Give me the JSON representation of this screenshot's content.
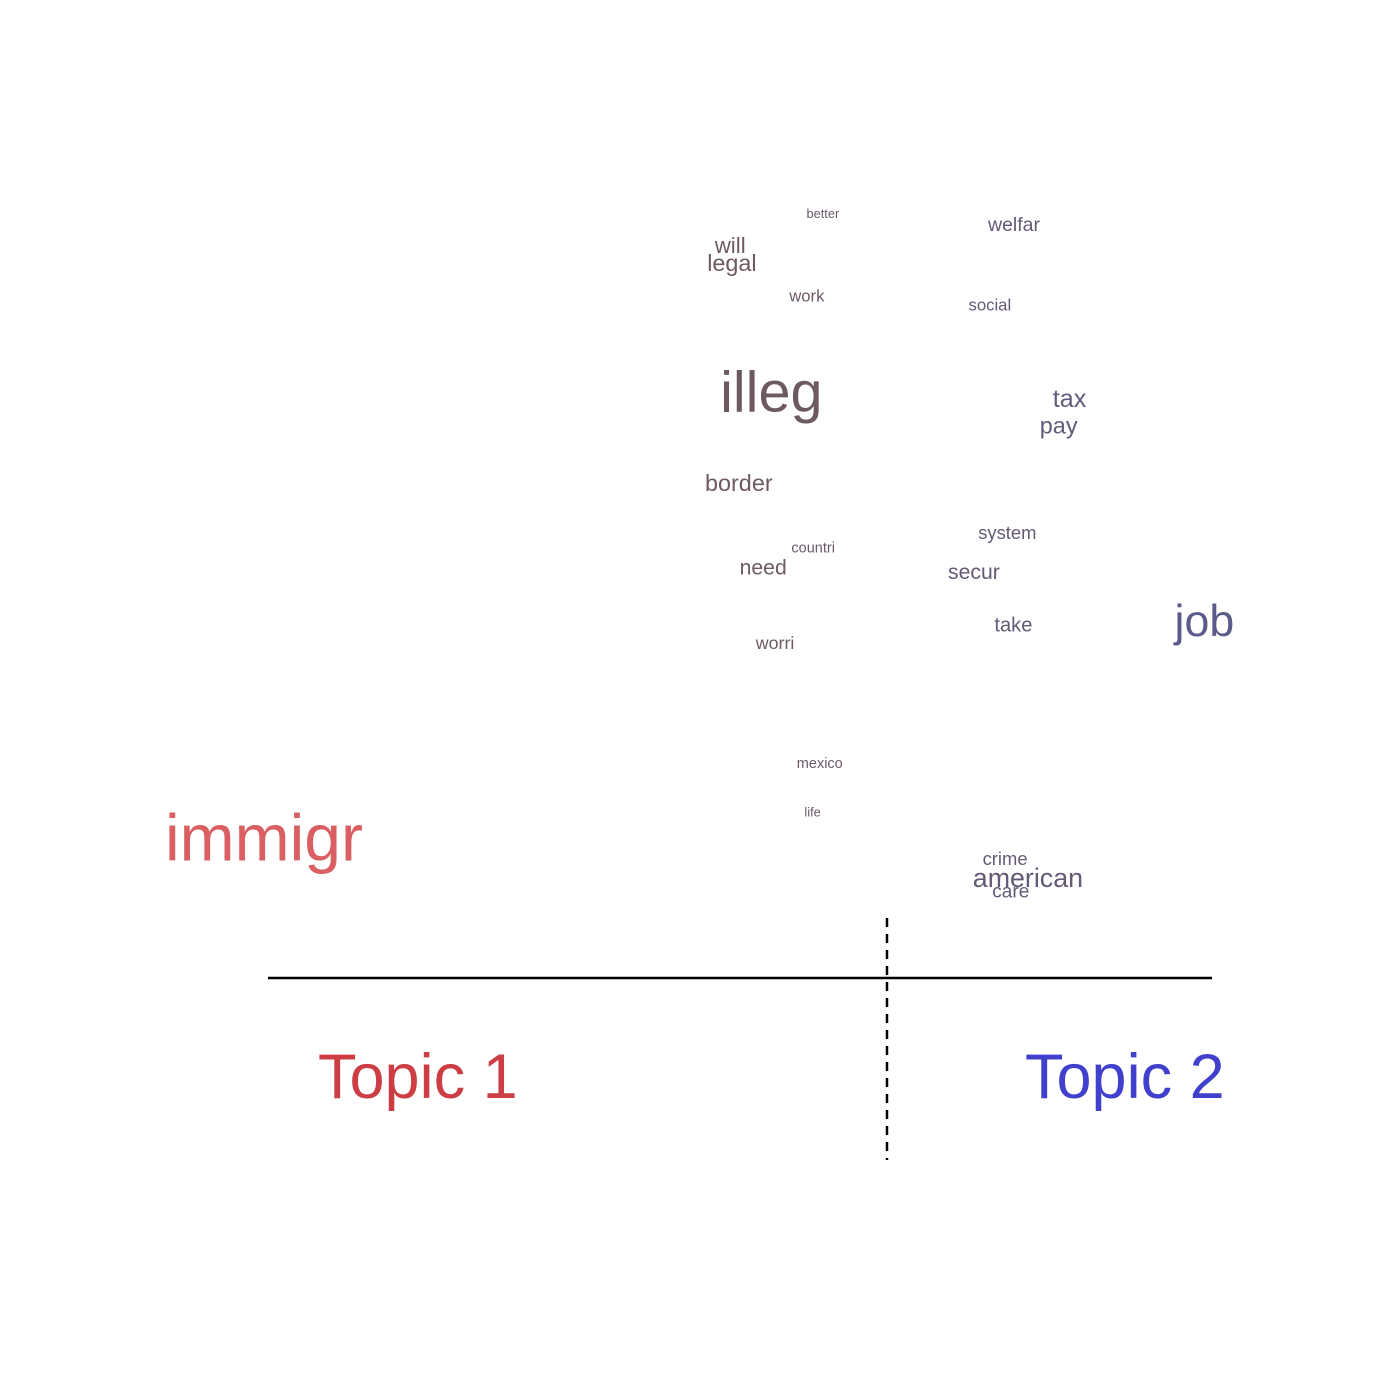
{
  "chart_data": {
    "type": "scatter",
    "subtype": "topic-word-contrast-plot",
    "title": "",
    "xlabel": "",
    "ylabel": "",
    "xlim": [
      0,
      1
    ],
    "topic_labels": [
      {
        "name": "Topic 1",
        "color": "#CC3D44"
      },
      {
        "name": "Topic 2",
        "color": "#4040CC"
      }
    ],
    "split_position": 0.655,
    "words": [
      {
        "word": "better",
        "x": 0.594,
        "y": 0.955,
        "weight": 0.05
      },
      {
        "word": "welfar",
        "x": 0.762,
        "y": 0.94,
        "weight": 0.17
      },
      {
        "word": "will",
        "x": 0.509,
        "y": 0.915,
        "weight": 0.22
      },
      {
        "word": "legal",
        "x": 0.502,
        "y": 0.895,
        "weight": 0.24
      },
      {
        "word": "work",
        "x": 0.578,
        "y": 0.86,
        "weight": 0.12
      },
      {
        "word": "social",
        "x": 0.744,
        "y": 0.85,
        "weight": 0.12
      },
      {
        "word": "illeg",
        "x": 0.514,
        "y": 0.735,
        "weight": 0.85
      },
      {
        "word": "tax",
        "x": 0.822,
        "y": 0.74,
        "weight": 0.27
      },
      {
        "word": "pay",
        "x": 0.81,
        "y": 0.71,
        "weight": 0.24
      },
      {
        "word": "border",
        "x": 0.5,
        "y": 0.645,
        "weight": 0.24
      },
      {
        "word": "system",
        "x": 0.753,
        "y": 0.59,
        "weight": 0.15
      },
      {
        "word": "countri",
        "x": 0.58,
        "y": 0.575,
        "weight": 0.08
      },
      {
        "word": "need",
        "x": 0.532,
        "y": 0.55,
        "weight": 0.2
      },
      {
        "word": "secur",
        "x": 0.725,
        "y": 0.545,
        "weight": 0.2
      },
      {
        "word": "take",
        "x": 0.768,
        "y": 0.485,
        "weight": 0.18
      },
      {
        "word": "job",
        "x": 0.99,
        "y": 0.48,
        "weight": 0.62
      },
      {
        "word": "worri",
        "x": 0.547,
        "y": 0.465,
        "weight": 0.14
      },
      {
        "word": "mexico",
        "x": 0.585,
        "y": 0.33,
        "weight": 0.08
      },
      {
        "word": "life",
        "x": 0.592,
        "y": 0.275,
        "weight": 0.05
      },
      {
        "word": "immigr",
        "x": 0.0,
        "y": 0.225,
        "weight": 1.0
      },
      {
        "word": "crime",
        "x": 0.757,
        "y": 0.22,
        "weight": 0.15
      },
      {
        "word": "american",
        "x": 0.748,
        "y": 0.195,
        "weight": 0.3
      },
      {
        "word": "care",
        "x": 0.766,
        "y": 0.183,
        "weight": 0.16
      }
    ]
  }
}
